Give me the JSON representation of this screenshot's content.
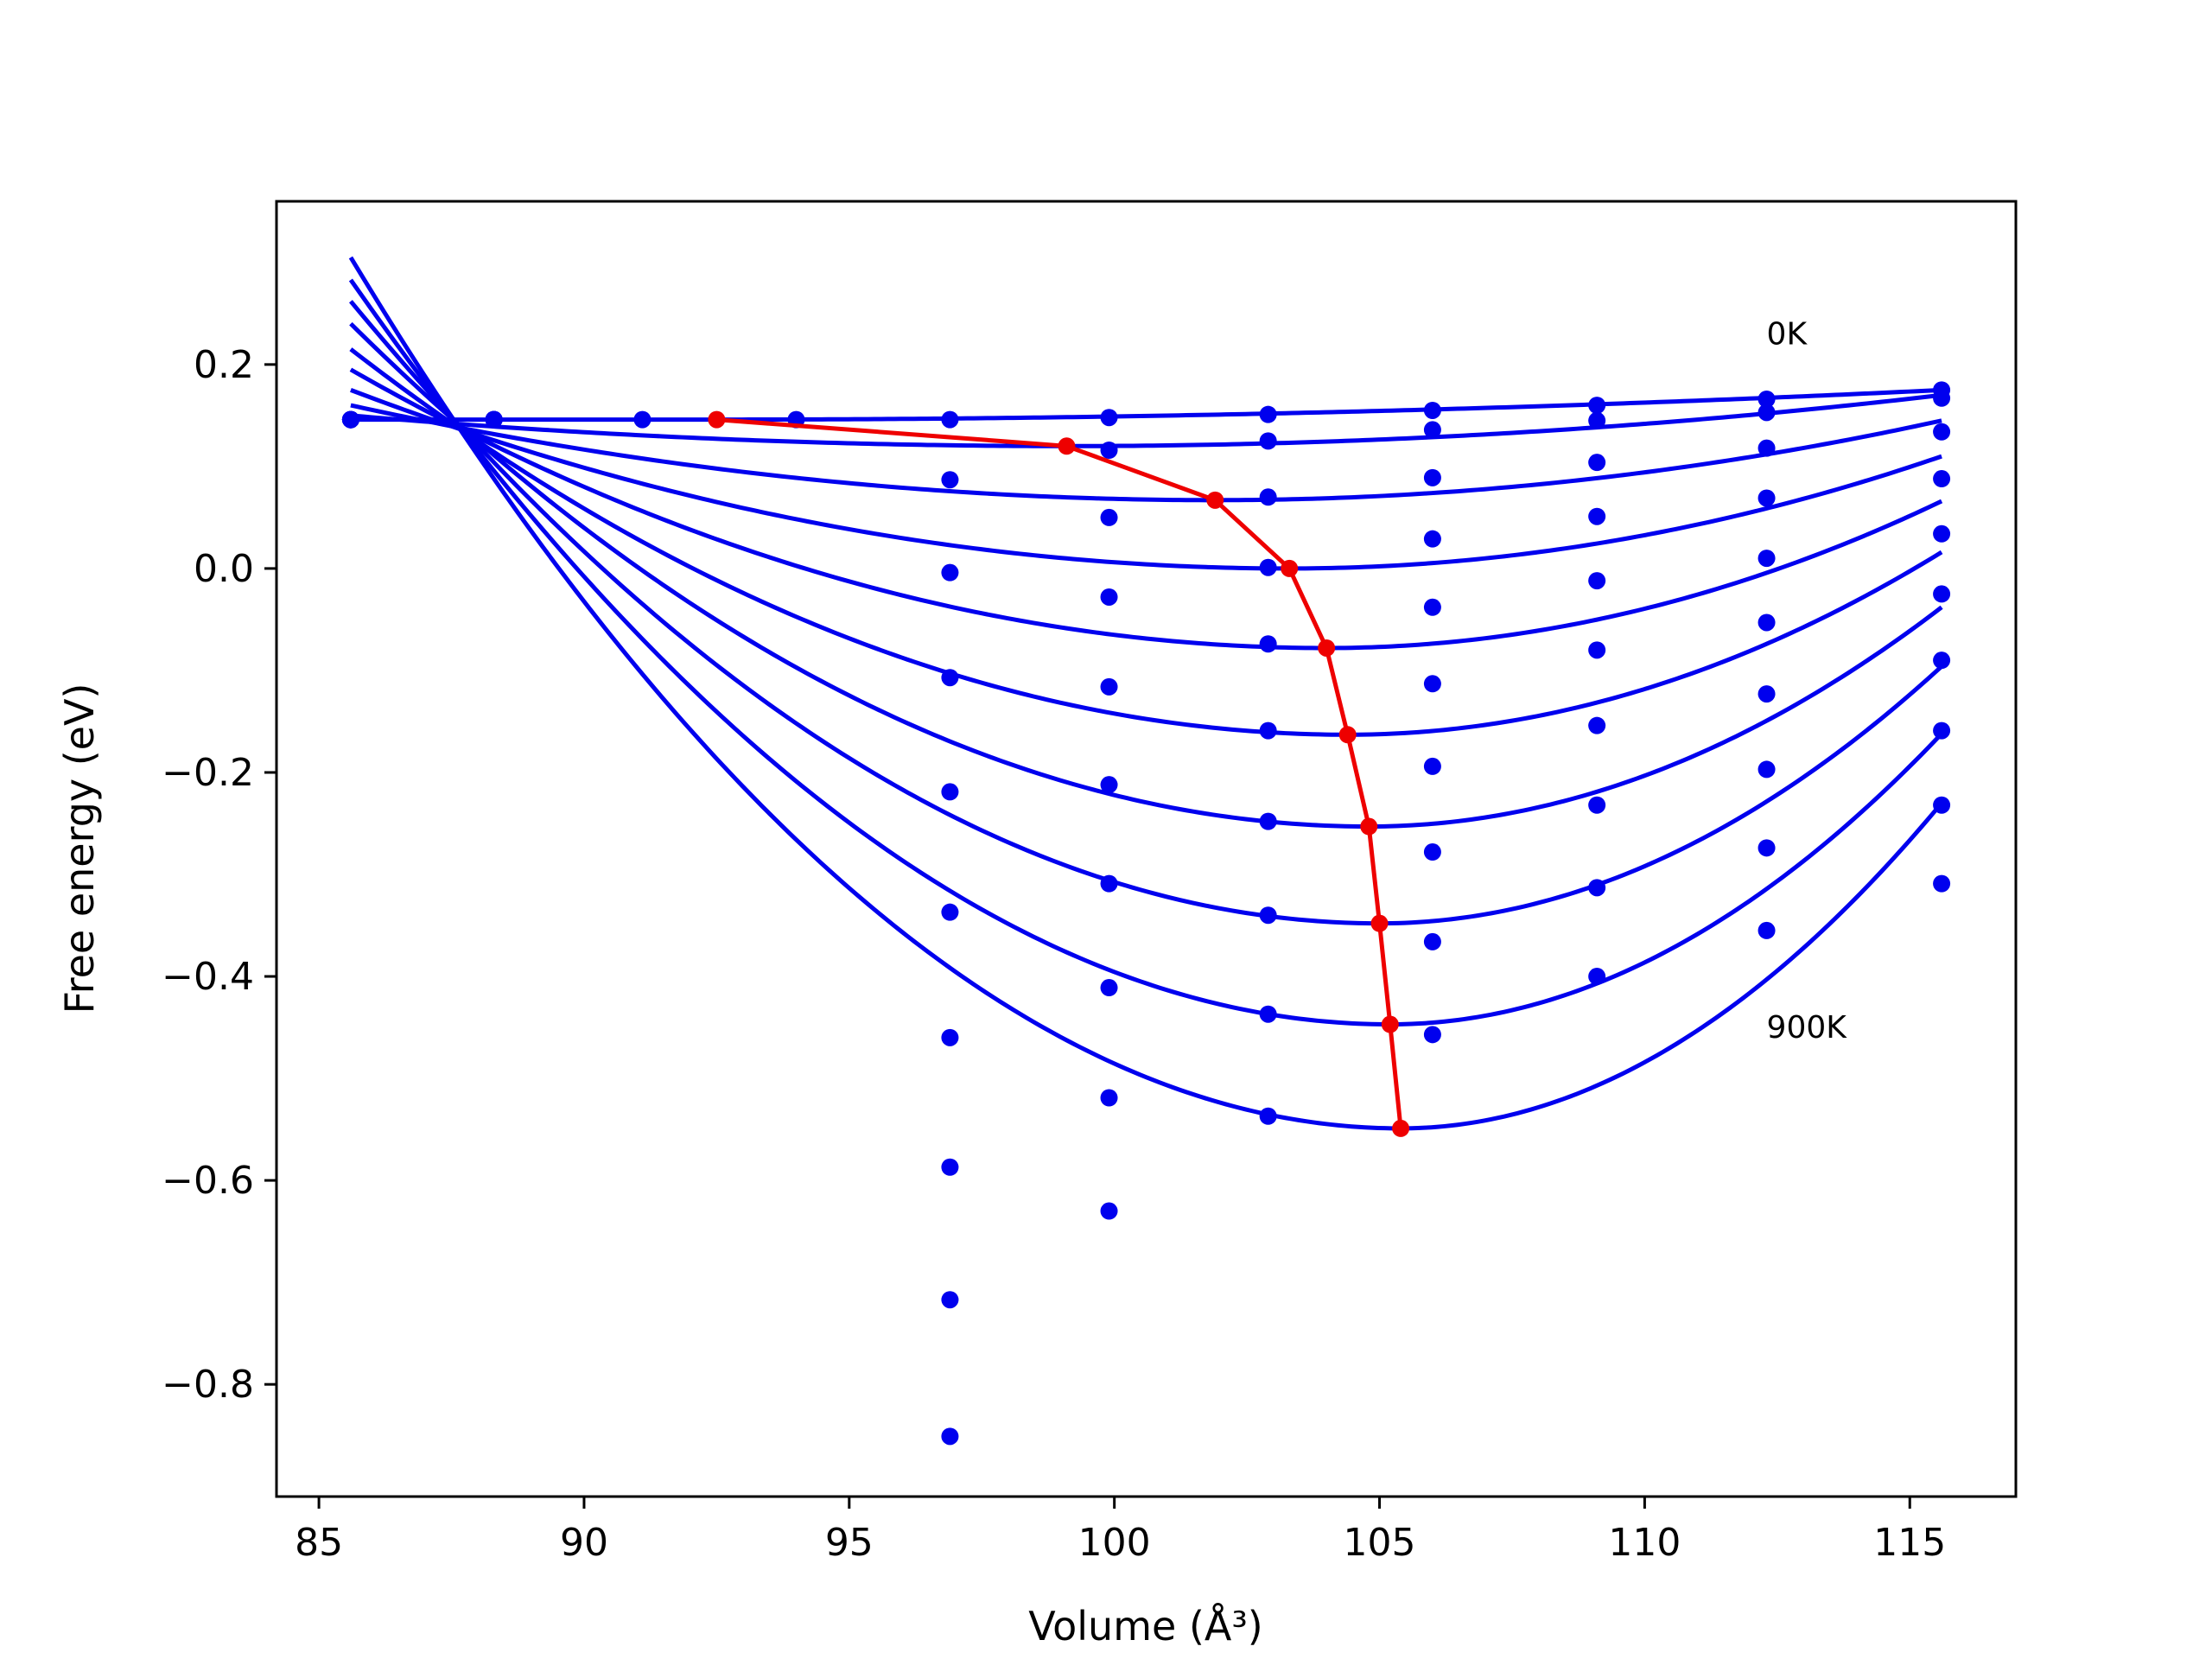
{
  "chart_data": {
    "type": "line",
    "title": "",
    "xlabel": "Volume (Å³)",
    "ylabel": "Free energy (eV)",
    "xlim": [
      84.2,
      117.0
    ],
    "ylim": [
      -0.91,
      0.36
    ],
    "xticks": [
      85,
      90,
      95,
      100,
      105,
      110,
      115
    ],
    "yticks": [
      -0.8,
      -0.6,
      -0.4,
      -0.2,
      0.0,
      0.2
    ],
    "xtick_labels": [
      "85",
      "90",
      "95",
      "100",
      "105",
      "110",
      "115"
    ],
    "ytick_labels": [
      "−0.8",
      "−0.6",
      "−0.4",
      "−0.2",
      "0.0",
      "0.2"
    ],
    "grid": false,
    "legend": "none",
    "annotations": [
      {
        "text": "0K",
        "x": 112.3,
        "y": 0.23
      },
      {
        "text": "900K",
        "x": 112.3,
        "y": -0.45
      }
    ],
    "curve_color": "#0000ee",
    "point_color": "#0000ee",
    "min_line_color": "#ee0000",
    "curve_x_range": [
      85.6,
      115.6
    ],
    "fit_curves": [
      {
        "v0": 92.5,
        "fmin": 0.146,
        "left": 0.146,
        "right": 0.175
      },
      {
        "v0": 99.1,
        "fmin": 0.12,
        "left": 0.15,
        "right": 0.17
      },
      {
        "v0": 101.9,
        "fmin": 0.067,
        "left": 0.16,
        "right": 0.145
      },
      {
        "v0": 103.3,
        "fmin": 0.0,
        "left": 0.175,
        "right": 0.11
      },
      {
        "v0": 104.0,
        "fmin": -0.078,
        "left": 0.195,
        "right": 0.066
      },
      {
        "v0": 104.4,
        "fmin": -0.163,
        "left": 0.215,
        "right": 0.016
      },
      {
        "v0": 104.8,
        "fmin": -0.253,
        "left": 0.24,
        "right": -0.038
      },
      {
        "v0": 105.0,
        "fmin": -0.348,
        "left": 0.262,
        "right": -0.096
      },
      {
        "v0": 105.2,
        "fmin": -0.447,
        "left": 0.283,
        "right": -0.162
      },
      {
        "v0": 105.4,
        "fmin": -0.549,
        "left": 0.305,
        "right": -0.23
      }
    ],
    "points": {
      "x": [
        85.6,
        85.6,
        85.6,
        85.6,
        85.6,
        85.6,
        85.6,
        85.6,
        85.6,
        85.6,
        88.3,
        88.3,
        88.3,
        88.3,
        88.3,
        88.3,
        88.3,
        88.3,
        88.3,
        88.3,
        91.1,
        94.0,
        96.9,
        96.9,
        96.9,
        96.9,
        96.9,
        96.9,
        96.9,
        96.9,
        96.9,
        96.9,
        99.9,
        99.9,
        99.9,
        99.9,
        99.9,
        99.9,
        99.9,
        99.9,
        99.9,
        99.9,
        102.9,
        102.9,
        102.9,
        102.9,
        102.9,
        102.9,
        102.9,
        102.9,
        102.9,
        102.9,
        106.0,
        106.0,
        106.0,
        106.0,
        106.0,
        106.0,
        106.0,
        106.0,
        106.0,
        106.0,
        109.1,
        109.1,
        109.1,
        109.1,
        109.1,
        109.1,
        109.1,
        109.1,
        109.1,
        109.1,
        112.3,
        112.3,
        112.3,
        112.3,
        112.3,
        112.3,
        112.3,
        112.3,
        112.3,
        112.3,
        115.6,
        115.6,
        115.6,
        115.6,
        115.6,
        115.6,
        115.6,
        115.6,
        115.6,
        115.6
      ],
      "y": [
        0.146,
        0.146,
        0.146,
        0.146,
        0.146,
        0.146,
        0.146,
        0.146,
        0.146,
        0.146,
        0.146,
        0.146,
        0.146,
        0.146,
        0.146,
        0.146,
        0.146,
        0.146,
        0.146,
        0.146,
        0.146,
        0.146,
        0.146,
        0.087,
        -0.004,
        -0.107,
        -0.219,
        -0.337,
        -0.46,
        -0.587,
        -0.717,
        -0.851,
        0.148,
        0.116,
        0.05,
        -0.028,
        -0.116,
        -0.212,
        -0.309,
        -0.411,
        -0.519,
        -0.63,
        0.151,
        0.125,
        0.07,
        0.001,
        -0.074,
        -0.159,
        -0.248,
        -0.34,
        -0.437,
        -0.537,
        0.155,
        0.136,
        0.089,
        0.029,
        -0.038,
        -0.113,
        -0.194,
        -0.278,
        -0.366,
        -0.457,
        0.16,
        0.145,
        0.104,
        0.051,
        -0.012,
        -0.08,
        -0.154,
        -0.232,
        -0.313,
        -0.4,
        0.166,
        0.153,
        0.118,
        0.069,
        0.01,
        -0.053,
        -0.123,
        -0.197,
        -0.274,
        -0.355,
        0.175,
        0.167,
        0.134,
        0.088,
        0.034,
        -0.025,
        -0.09,
        -0.159,
        -0.232,
        -0.309
      ]
    },
    "min_line": {
      "x": [
        92.5,
        99.1,
        101.9,
        103.3,
        104.0,
        104.4,
        104.8,
        105.0,
        105.2,
        105.4
      ],
      "y": [
        0.146,
        0.12,
        0.067,
        0.0,
        -0.078,
        -0.163,
        -0.253,
        -0.348,
        -0.447,
        -0.549
      ]
    }
  }
}
